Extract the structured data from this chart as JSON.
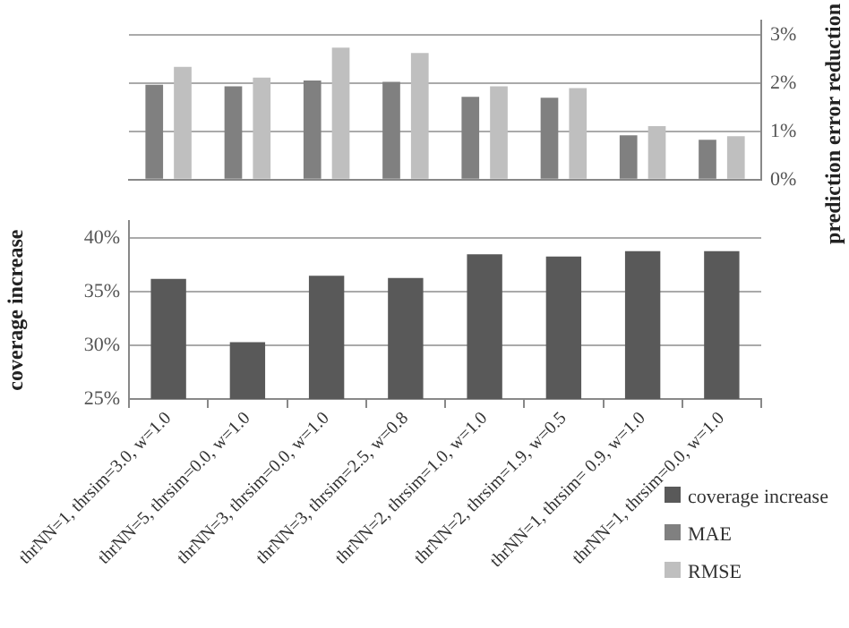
{
  "chart_data": [
    {
      "type": "bar",
      "ylabel": "prediction error reduction",
      "categories": [
        null,
        null,
        null,
        null,
        null,
        null,
        null,
        null
      ],
      "series": [
        {
          "name": "MAE",
          "color": "#808080",
          "values": [
            1.97,
            1.94,
            2.06,
            2.03,
            1.72,
            1.7,
            0.92,
            0.83
          ]
        },
        {
          "name": "RMSE",
          "color": "#bfbfbf",
          "values": [
            2.34,
            2.12,
            2.74,
            2.63,
            1.94,
            1.9,
            1.11,
            0.9
          ]
        }
      ],
      "ylim": [
        0,
        3.3
      ],
      "yticks": [
        {
          "value": 0,
          "label": "0%"
        },
        {
          "value": 1,
          "label": "1%"
        },
        {
          "value": 2,
          "label": "2%"
        },
        {
          "value": 3,
          "label": "3%"
        }
      ],
      "grid": "y",
      "legend": "bottom right",
      "tick_labels": "y"
    },
    {
      "type": "bar",
      "ylabel": "coverage increase",
      "categories": [
        "thrNN=1, thrsim=3.0, w=1.0",
        "thrNN=5, thrsim=0.0, w=1.0",
        "thrNN=3, thrsim=0.0, w=1.0",
        "thrNN=3, thrsim=2.5, w=0.8",
        "thrNN=2, thrsim=1.0, w=1.0",
        "thrNN=2, thrsim=1.9, w=0.5",
        "thrNN=1, thrsim= 0.9, w=1.0",
        "thrNN=1, thrsim=0.0, w=1.0"
      ],
      "series": [
        {
          "name": "coverage increase",
          "color": "#595959",
          "values": [
            36.2,
            30.3,
            36.5,
            36.3,
            38.5,
            38.3,
            38.8,
            38.8
          ]
        }
      ],
      "ylim": [
        25,
        41.6
      ],
      "yticks": [
        {
          "value": 25,
          "label": "25%"
        },
        {
          "value": 30,
          "label": "30%"
        },
        {
          "value": 35,
          "label": "35%"
        },
        {
          "value": 40,
          "label": "40%"
        }
      ],
      "grid": "y",
      "legend": "bottom right"
    }
  ]
}
